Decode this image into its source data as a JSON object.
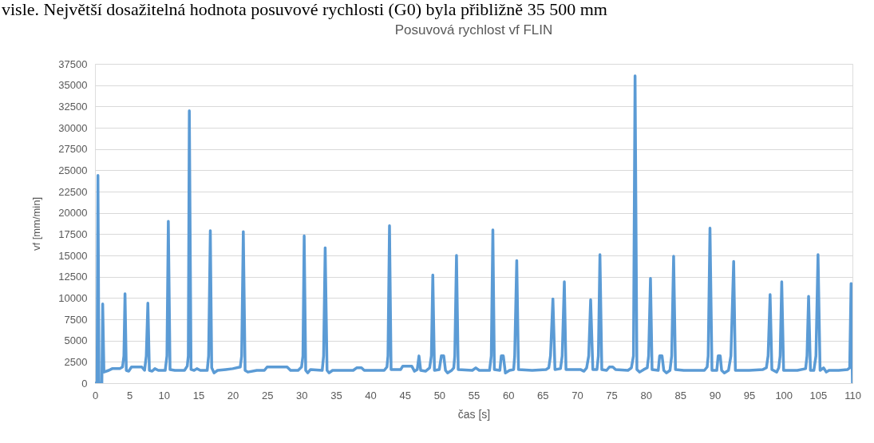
{
  "chart_data": {
    "type": "line",
    "title": "Posuvová rychlost vf FLIN",
    "xlabel": "čas [s]",
    "ylabel": "vf [mm/min]",
    "annotations": [
      "visle. Největší dosažitelná hodnota posuvové rychlosti (G0) byla přibližně 35 500 mm"
    ],
    "x": [
      0,
      0.3,
      0.43,
      0.58,
      1.0,
      1.12,
      1.3,
      2.0,
      2.5,
      3.6,
      4.0,
      4.2,
      4.36,
      4.55,
      4.9,
      5.3,
      6.8,
      7.2,
      7.45,
      7.68,
      7.9,
      8.3,
      8.7,
      9.2,
      10.2,
      10.45,
      10.65,
      10.9,
      11.6,
      13.0,
      13.4,
      13.55,
      13.7,
      13.95,
      14.4,
      14.8,
      15.3,
      16.3,
      16.5,
      16.75,
      16.95,
      17.3,
      17.8,
      19.0,
      20.0,
      21.1,
      21.3,
      21.54,
      21.8,
      22.2,
      23.5,
      24.6,
      25.0,
      27.9,
      28.4,
      29.5,
      30.0,
      30.2,
      30.38,
      30.6,
      30.9,
      31.3,
      33.0,
      33.2,
      33.43,
      33.7,
      34.0,
      34.5,
      37.5,
      38.0,
      38.7,
      39.1,
      42.0,
      42.4,
      42.55,
      42.77,
      43.0,
      44.4,
      44.7,
      46.0,
      46.4,
      46.8,
      47.05,
      47.3,
      48.0,
      48.6,
      48.85,
      49.06,
      49.3,
      50.0,
      50.3,
      50.65,
      50.9,
      51.2,
      51.8,
      52.1,
      52.25,
      52.5,
      52.75,
      54.8,
      55.3,
      55.8,
      57.3,
      57.55,
      57.78,
      58.0,
      58.8,
      59.0,
      59.3,
      59.6,
      60.2,
      60.8,
      60.95,
      61.25,
      61.5,
      63.5,
      65.5,
      65.9,
      66.15,
      66.5,
      66.8,
      67.6,
      67.85,
      68.16,
      68.4,
      70.5,
      71.0,
      71.4,
      71.7,
      71.98,
      72.3,
      72.9,
      73.1,
      73.33,
      73.6,
      74.3,
      74.7,
      75.2,
      75.6,
      77.4,
      77.9,
      78.2,
      78.43,
      78.7,
      79.1,
      79.7,
      80.2,
      80.4,
      80.67,
      80.9,
      81.8,
      82.0,
      82.35,
      82.6,
      83.0,
      83.5,
      83.75,
      84.03,
      84.3,
      85.5,
      88.5,
      88.9,
      89.05,
      89.31,
      89.6,
      90.3,
      90.5,
      90.8,
      91.0,
      91.4,
      92.0,
      92.35,
      92.75,
      93.0,
      95.0,
      97.0,
      97.5,
      97.75,
      98.04,
      98.3,
      99.0,
      99.3,
      99.5,
      99.73,
      100.0,
      102.0,
      103.2,
      103.4,
      103.63,
      103.9,
      104.4,
      104.7,
      105.0,
      105.3,
      105.8,
      106.2,
      106.6,
      108.0,
      109.3,
      109.6,
      109.8,
      110
    ],
    "series": [
      {
        "color": "#5b9bd5",
        "values": [
          0,
          0,
          24400,
          0,
          0,
          9300,
          1300,
          1500,
          1700,
          1700,
          1900,
          3200,
          10500,
          1500,
          1400,
          1900,
          1900,
          1500,
          3200,
          9400,
          1500,
          1400,
          1700,
          1500,
          1500,
          3200,
          19000,
          1600,
          1500,
          1500,
          2000,
          3200,
          32000,
          1600,
          1500,
          1700,
          1500,
          1500,
          3200,
          17900,
          1800,
          1200,
          1500,
          1600,
          1700,
          1900,
          3200,
          17800,
          1500,
          1300,
          1500,
          1500,
          1900,
          1900,
          1500,
          1500,
          1900,
          3200,
          17300,
          1500,
          1200,
          1600,
          1500,
          3200,
          15900,
          1500,
          1200,
          1500,
          1500,
          1800,
          1800,
          1500,
          1500,
          1900,
          3200,
          18500,
          1600,
          1600,
          2000,
          2000,
          1400,
          1600,
          3200,
          1500,
          1400,
          1800,
          3200,
          12700,
          1500,
          1600,
          3200,
          3200,
          1500,
          1200,
          1500,
          1800,
          3200,
          15000,
          1600,
          1500,
          1800,
          1500,
          1500,
          3200,
          18000,
          1600,
          1500,
          3200,
          3200,
          1200,
          1500,
          1600,
          3200,
          14400,
          1600,
          1500,
          1600,
          1800,
          3200,
          9900,
          1600,
          1700,
          3200,
          11900,
          1600,
          1600,
          1400,
          1800,
          3200,
          9800,
          1600,
          1600,
          3200,
          15100,
          1600,
          1500,
          1900,
          1900,
          1600,
          1500,
          1800,
          3200,
          36100,
          1600,
          1300,
          1600,
          1800,
          3200,
          12300,
          1600,
          1500,
          3200,
          3200,
          1500,
          1200,
          1500,
          3200,
          14900,
          1600,
          1500,
          1500,
          1900,
          3200,
          18200,
          1500,
          1500,
          3200,
          3200,
          1500,
          1200,
          1500,
          3200,
          14300,
          1500,
          1500,
          1600,
          1800,
          3200,
          10400,
          1600,
          1300,
          1800,
          3200,
          11900,
          1500,
          1500,
          1700,
          3200,
          10200,
          1500,
          1500,
          3200,
          15100,
          1500,
          1800,
          1300,
          1500,
          1500,
          1600,
          1800,
          11700,
          0
        ]
      }
    ],
    "xlim": [
      0,
      110
    ],
    "xticks": [
      0,
      5,
      10,
      15,
      20,
      25,
      30,
      35,
      40,
      45,
      50,
      55,
      60,
      65,
      70,
      75,
      80,
      85,
      90,
      95,
      100,
      105,
      110
    ],
    "ylim": [
      0,
      37500
    ],
    "yticks": [
      0,
      2500,
      5000,
      7500,
      10000,
      12500,
      15000,
      17500,
      20000,
      22500,
      25000,
      27500,
      30000,
      32500,
      35000,
      37500
    ],
    "grid": "y"
  }
}
